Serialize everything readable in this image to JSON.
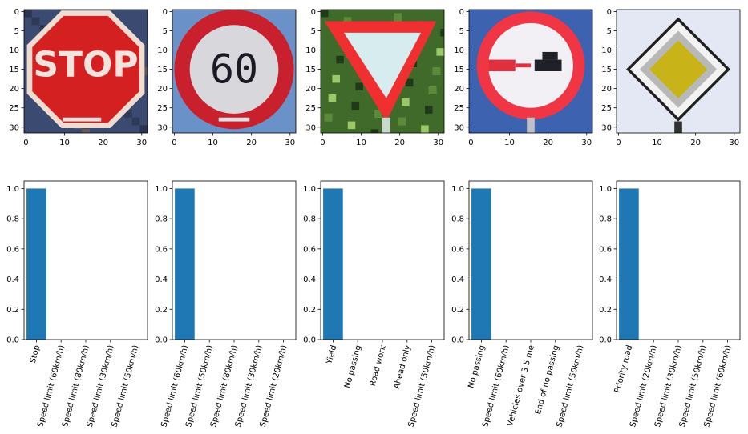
{
  "colors": {
    "bar": "#1f77b4",
    "axes": "#000000",
    "background": "#ffffff"
  },
  "image_axes": {
    "x_ticks": [
      0,
      10,
      20,
      30
    ],
    "y_ticks": [
      0,
      5,
      10,
      15,
      20,
      25,
      30
    ],
    "xlim": [
      -0.5,
      31.5
    ],
    "ylim": [
      31.5,
      -0.5
    ]
  },
  "images": [
    {
      "name": "stop-sign-image",
      "sign_text": "STOP",
      "shape": "octagon",
      "colors": {
        "sign": "#d42020",
        "rim": "#f0dcd0",
        "text": "#f2e4dc",
        "bg": "#3a4a70"
      }
    },
    {
      "name": "speed-limit-60-image",
      "sign_text": "60",
      "shape": "circle",
      "colors": {
        "sign": "#c8202c",
        "inner": "#d8d8dc",
        "text": "#1a1a24",
        "bg": "#6b92c8"
      }
    },
    {
      "name": "yield-sign-image",
      "sign_text": "",
      "shape": "triangle",
      "colors": {
        "sign": "#f03030",
        "inner": "#d6ecee",
        "bg": "#3f6a2a"
      }
    },
    {
      "name": "no-passing-image",
      "sign_text": "",
      "shape": "circle-no-passing",
      "colors": {
        "sign": "#f03545",
        "inner": "#f2f0f4",
        "car_left": "#e03040",
        "car_right": "#202028",
        "bg": "#3d62b0"
      }
    },
    {
      "name": "priority-road-image",
      "sign_text": "",
      "shape": "diamond",
      "colors": {
        "outer": "#202020",
        "border": "#f2f2f2",
        "ring": "#b8b8b8",
        "inner": "#c8b418",
        "bg": "#e4e8f4"
      }
    }
  ],
  "chart_data": [
    {
      "type": "bar",
      "categories": [
        "Stop",
        "Speed limit (60km/h)",
        "Speed limit (80km/h)",
        "Speed limit (30km/h)",
        "Speed limit (50km/h)"
      ],
      "values": [
        1.0,
        0.0,
        0.0,
        0.0,
        0.0
      ],
      "ylim": [
        0,
        1.05
      ],
      "yticks": [
        "0.0",
        "0.2",
        "0.4",
        "0.6",
        "0.8",
        "1.0"
      ],
      "title": "",
      "xlabel": "",
      "ylabel": ""
    },
    {
      "type": "bar",
      "categories": [
        "Speed limit (60km/h)",
        "Speed limit (50km/h)",
        "Speed limit (80km/h)",
        "Speed limit (30km/h)",
        "Speed limit (20km/h)"
      ],
      "values": [
        1.0,
        0.0,
        0.0,
        0.0,
        0.0
      ],
      "ylim": [
        0,
        1.05
      ],
      "yticks": [
        "0.0",
        "0.2",
        "0.4",
        "0.6",
        "0.8",
        "1.0"
      ],
      "title": "",
      "xlabel": "",
      "ylabel": ""
    },
    {
      "type": "bar",
      "categories": [
        "Yield",
        "No passing",
        "Road work",
        "Ahead only",
        "Speed limit (50km/h)"
      ],
      "values": [
        1.0,
        0.0,
        0.0,
        0.0,
        0.0
      ],
      "ylim": [
        0,
        1.05
      ],
      "yticks": [
        "0.0",
        "0.2",
        "0.4",
        "0.6",
        "0.8",
        "1.0"
      ],
      "title": "",
      "xlabel": "",
      "ylabel": ""
    },
    {
      "type": "bar",
      "categories": [
        "No passing",
        "Speed limit (60km/h)",
        "Vehicles over 3.5 me",
        "End of no passing",
        "Speed limit (50km/h)"
      ],
      "values": [
        1.0,
        0.0,
        0.0,
        0.0,
        0.0
      ],
      "ylim": [
        0,
        1.05
      ],
      "yticks": [
        "0.0",
        "0.2",
        "0.4",
        "0.6",
        "0.8",
        "1.0"
      ],
      "title": "",
      "xlabel": "",
      "ylabel": ""
    },
    {
      "type": "bar",
      "categories": [
        "Priority road",
        "Speed limit (20km/h)",
        "Speed limit (30km/h)",
        "Speed limit (50km/h)",
        "Speed limit (60km/h)"
      ],
      "values": [
        1.0,
        0.0,
        0.0,
        0.0,
        0.0
      ],
      "ylim": [
        0,
        1.05
      ],
      "yticks": [
        "0.0",
        "0.2",
        "0.4",
        "0.6",
        "0.8",
        "1.0"
      ],
      "title": "",
      "xlabel": "",
      "ylabel": ""
    }
  ]
}
